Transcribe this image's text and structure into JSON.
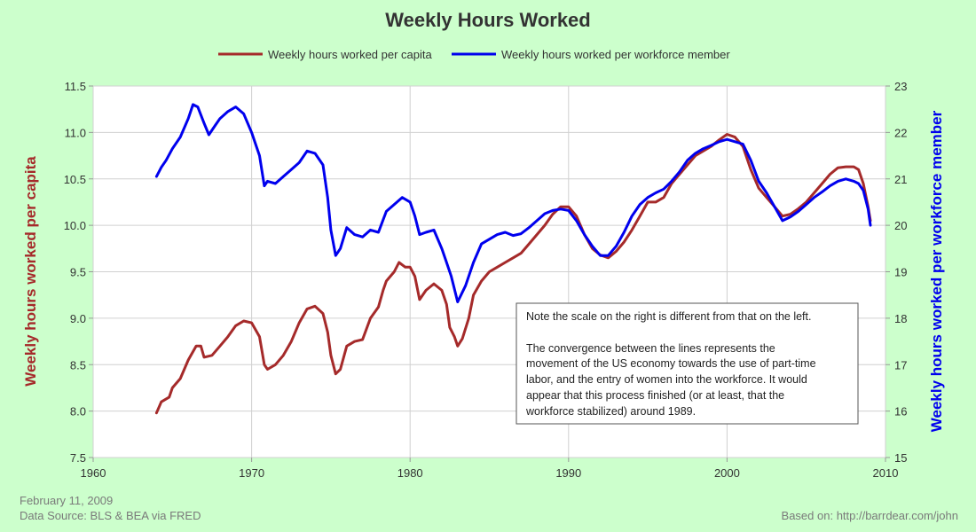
{
  "chart_data": {
    "type": "line",
    "title": "Weekly Hours Worked",
    "xlim": [
      1960,
      2010
    ],
    "x_ticks": [
      "1960",
      "1970",
      "1980",
      "1990",
      "2000",
      "2010"
    ],
    "left_axis": {
      "label": "Weekly hours worked per capita",
      "ylim": [
        7.5,
        11.5
      ],
      "ticks": [
        "7.5",
        "8.0",
        "8.5",
        "9.0",
        "9.5",
        "10.0",
        "10.5",
        "11.0",
        "11.5"
      ]
    },
    "right_axis": {
      "label": "Weekly hours worked per workforce member",
      "ylim": [
        15,
        23
      ],
      "ticks": [
        "15",
        "16",
        "17",
        "18",
        "19",
        "20",
        "21",
        "22",
        "23"
      ]
    },
    "grid": true,
    "legend_position": "top",
    "series": [
      {
        "name": "Weekly hours worked per capita",
        "axis": "left",
        "color": "#a52a2a",
        "points": [
          [
            1964.0,
            7.98
          ],
          [
            1964.3,
            8.1
          ],
          [
            1964.8,
            8.15
          ],
          [
            1965.0,
            8.25
          ],
          [
            1965.5,
            8.35
          ],
          [
            1966.0,
            8.55
          ],
          [
            1966.5,
            8.7
          ],
          [
            1966.8,
            8.7
          ],
          [
            1967.0,
            8.58
          ],
          [
            1967.5,
            8.6
          ],
          [
            1968.0,
            8.7
          ],
          [
            1968.5,
            8.8
          ],
          [
            1969.0,
            8.92
          ],
          [
            1969.5,
            8.97
          ],
          [
            1970.0,
            8.95
          ],
          [
            1970.5,
            8.8
          ],
          [
            1970.8,
            8.5
          ],
          [
            1971.0,
            8.45
          ],
          [
            1971.5,
            8.5
          ],
          [
            1972.0,
            8.6
          ],
          [
            1972.5,
            8.75
          ],
          [
            1973.0,
            8.95
          ],
          [
            1973.5,
            9.1
          ],
          [
            1974.0,
            9.13
          ],
          [
            1974.5,
            9.05
          ],
          [
            1974.8,
            8.85
          ],
          [
            1975.0,
            8.6
          ],
          [
            1975.3,
            8.4
          ],
          [
            1975.6,
            8.45
          ],
          [
            1976.0,
            8.7
          ],
          [
            1976.5,
            8.75
          ],
          [
            1977.0,
            8.77
          ],
          [
            1977.5,
            9.0
          ],
          [
            1978.0,
            9.12
          ],
          [
            1978.3,
            9.3
          ],
          [
            1978.5,
            9.4
          ],
          [
            1979.0,
            9.5
          ],
          [
            1979.3,
            9.6
          ],
          [
            1979.7,
            9.55
          ],
          [
            1980.0,
            9.55
          ],
          [
            1980.3,
            9.45
          ],
          [
            1980.6,
            9.2
          ],
          [
            1981.0,
            9.3
          ],
          [
            1981.5,
            9.37
          ],
          [
            1982.0,
            9.3
          ],
          [
            1982.3,
            9.15
          ],
          [
            1982.5,
            8.9
          ],
          [
            1982.8,
            8.8
          ],
          [
            1983.0,
            8.7
          ],
          [
            1983.3,
            8.78
          ],
          [
            1983.7,
            9.0
          ],
          [
            1984.0,
            9.25
          ],
          [
            1984.5,
            9.4
          ],
          [
            1985.0,
            9.5
          ],
          [
            1985.5,
            9.55
          ],
          [
            1986.0,
            9.6
          ],
          [
            1986.5,
            9.65
          ],
          [
            1987.0,
            9.7
          ],
          [
            1987.5,
            9.8
          ],
          [
            1988.0,
            9.9
          ],
          [
            1988.5,
            10.0
          ],
          [
            1989.0,
            10.12
          ],
          [
            1989.5,
            10.2
          ],
          [
            1990.0,
            10.2
          ],
          [
            1990.5,
            10.1
          ],
          [
            1991.0,
            9.9
          ],
          [
            1991.5,
            9.75
          ],
          [
            1992.0,
            9.68
          ],
          [
            1992.5,
            9.65
          ],
          [
            1993.0,
            9.72
          ],
          [
            1993.5,
            9.82
          ],
          [
            1994.0,
            9.95
          ],
          [
            1994.5,
            10.1
          ],
          [
            1995.0,
            10.25
          ],
          [
            1995.5,
            10.25
          ],
          [
            1996.0,
            10.3
          ],
          [
            1996.5,
            10.45
          ],
          [
            1997.0,
            10.55
          ],
          [
            1997.5,
            10.65
          ],
          [
            1998.0,
            10.75
          ],
          [
            1998.5,
            10.8
          ],
          [
            1999.0,
            10.85
          ],
          [
            1999.5,
            10.92
          ],
          [
            2000.0,
            10.98
          ],
          [
            2000.5,
            10.95
          ],
          [
            2001.0,
            10.85
          ],
          [
            2001.5,
            10.6
          ],
          [
            2002.0,
            10.4
          ],
          [
            2002.5,
            10.3
          ],
          [
            2003.0,
            10.2
          ],
          [
            2003.5,
            10.1
          ],
          [
            2004.0,
            10.12
          ],
          [
            2004.5,
            10.18
          ],
          [
            2005.0,
            10.25
          ],
          [
            2005.5,
            10.35
          ],
          [
            2006.0,
            10.45
          ],
          [
            2006.5,
            10.55
          ],
          [
            2007.0,
            10.62
          ],
          [
            2007.5,
            10.63
          ],
          [
            2008.0,
            10.63
          ],
          [
            2008.3,
            10.6
          ],
          [
            2008.6,
            10.45
          ],
          [
            2008.9,
            10.2
          ],
          [
            2009.05,
            10.05
          ]
        ]
      },
      {
        "name": "Weekly hours worked per workforce member",
        "axis": "right",
        "color": "#0000ee",
        "points": [
          [
            1964.0,
            21.05
          ],
          [
            1964.3,
            21.25
          ],
          [
            1964.6,
            21.4
          ],
          [
            1965.0,
            21.65
          ],
          [
            1965.5,
            21.9
          ],
          [
            1966.0,
            22.3
          ],
          [
            1966.3,
            22.6
          ],
          [
            1966.6,
            22.55
          ],
          [
            1967.0,
            22.2
          ],
          [
            1967.3,
            21.95
          ],
          [
            1967.7,
            22.15
          ],
          [
            1968.0,
            22.3
          ],
          [
            1968.5,
            22.45
          ],
          [
            1969.0,
            22.55
          ],
          [
            1969.5,
            22.4
          ],
          [
            1970.0,
            22.0
          ],
          [
            1970.5,
            21.5
          ],
          [
            1970.8,
            20.85
          ],
          [
            1971.0,
            20.95
          ],
          [
            1971.5,
            20.9
          ],
          [
            1972.0,
            21.05
          ],
          [
            1972.5,
            21.2
          ],
          [
            1973.0,
            21.35
          ],
          [
            1973.5,
            21.6
          ],
          [
            1974.0,
            21.55
          ],
          [
            1974.5,
            21.3
          ],
          [
            1974.8,
            20.6
          ],
          [
            1975.0,
            19.9
          ],
          [
            1975.3,
            19.35
          ],
          [
            1975.6,
            19.5
          ],
          [
            1976.0,
            19.95
          ],
          [
            1976.5,
            19.8
          ],
          [
            1977.0,
            19.75
          ],
          [
            1977.5,
            19.9
          ],
          [
            1978.0,
            19.85
          ],
          [
            1978.5,
            20.3
          ],
          [
            1979.0,
            20.45
          ],
          [
            1979.5,
            20.6
          ],
          [
            1980.0,
            20.5
          ],
          [
            1980.3,
            20.2
          ],
          [
            1980.6,
            19.8
          ],
          [
            1981.0,
            19.85
          ],
          [
            1981.5,
            19.9
          ],
          [
            1982.0,
            19.5
          ],
          [
            1982.3,
            19.2
          ],
          [
            1982.6,
            18.9
          ],
          [
            1983.0,
            18.35
          ],
          [
            1983.5,
            18.7
          ],
          [
            1984.0,
            19.2
          ],
          [
            1984.5,
            19.6
          ],
          [
            1985.0,
            19.7
          ],
          [
            1985.5,
            19.8
          ],
          [
            1986.0,
            19.85
          ],
          [
            1986.5,
            19.78
          ],
          [
            1987.0,
            19.82
          ],
          [
            1987.5,
            19.95
          ],
          [
            1988.0,
            20.1
          ],
          [
            1988.5,
            20.25
          ],
          [
            1989.0,
            20.32
          ],
          [
            1989.5,
            20.35
          ],
          [
            1990.0,
            20.32
          ],
          [
            1990.5,
            20.1
          ],
          [
            1991.0,
            19.8
          ],
          [
            1991.5,
            19.55
          ],
          [
            1992.0,
            19.35
          ],
          [
            1992.5,
            19.35
          ],
          [
            1993.0,
            19.55
          ],
          [
            1993.5,
            19.85
          ],
          [
            1994.0,
            20.2
          ],
          [
            1994.5,
            20.45
          ],
          [
            1995.0,
            20.6
          ],
          [
            1995.5,
            20.7
          ],
          [
            1996.0,
            20.78
          ],
          [
            1996.5,
            20.95
          ],
          [
            1997.0,
            21.15
          ],
          [
            1997.5,
            21.4
          ],
          [
            1998.0,
            21.55
          ],
          [
            1998.5,
            21.65
          ],
          [
            1999.0,
            21.72
          ],
          [
            1999.5,
            21.8
          ],
          [
            2000.0,
            21.85
          ],
          [
            2000.5,
            21.8
          ],
          [
            2001.0,
            21.75
          ],
          [
            2001.5,
            21.4
          ],
          [
            2002.0,
            20.95
          ],
          [
            2002.5,
            20.7
          ],
          [
            2003.0,
            20.4
          ],
          [
            2003.5,
            20.1
          ],
          [
            2004.0,
            20.18
          ],
          [
            2004.5,
            20.3
          ],
          [
            2005.0,
            20.45
          ],
          [
            2005.5,
            20.6
          ],
          [
            2006.0,
            20.72
          ],
          [
            2006.5,
            20.85
          ],
          [
            2007.0,
            20.95
          ],
          [
            2007.5,
            21.0
          ],
          [
            2008.0,
            20.95
          ],
          [
            2008.3,
            20.9
          ],
          [
            2008.6,
            20.75
          ],
          [
            2008.9,
            20.35
          ],
          [
            2009.05,
            20.0
          ]
        ]
      }
    ],
    "annotation": [
      "Note the scale on the right is different from that on the left.",
      "",
      "The convergence between the lines represents the",
      "movement of the US economy towards the use of part-time",
      "labor, and the entry of women into the workforce.  It would",
      "appear that this process finished (or at least, that the",
      "workforce stabilized) around 1989."
    ]
  },
  "footer": {
    "date": "February 11, 2009",
    "source": "Data Source: BLS & BEA via FRED",
    "based_on": "Based on: http://barrdear.com/john"
  }
}
